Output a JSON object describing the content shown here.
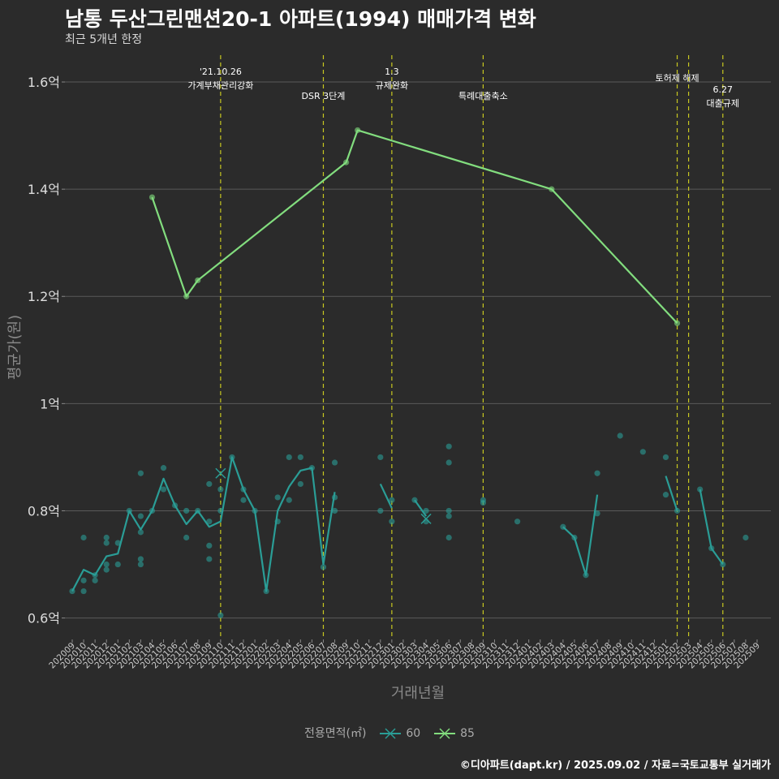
{
  "title": "남통 두산그린맨션20-1 아파트(1994) 매매가격 변화",
  "subtitle": "최근 5개년 한정",
  "caption": "©디아파트(dapt.kr) / 2025.09.02 / 자료=국토교통부 실거래가",
  "legend": {
    "title": "전용면적(㎡)",
    "items": [
      "60",
      "85"
    ]
  },
  "colors": {
    "s60": "#2a9d96",
    "s85": "#82dd7e",
    "event": "#c8c820",
    "bg": "#2b2b2b",
    "grid": "#5a5a5a"
  },
  "chart_data": {
    "type": "line",
    "title": "남통 두산그린맨션20-1 아파트(1994) 매매가격 변화",
    "xlabel": "거래년월",
    "ylabel": "평균가(원)",
    "ylim": [
      0.56,
      1.65
    ],
    "yticks": [
      0.6,
      0.8,
      1.0,
      1.2,
      1.4,
      1.6
    ],
    "ytick_labels": [
      "0.6억",
      "0.8억",
      "1억",
      "1.2억",
      "1.4억",
      "1.6억"
    ],
    "categories": [
      "202009",
      "202010",
      "202011",
      "202012",
      "202101",
      "202102",
      "202103",
      "202104",
      "202105",
      "202106",
      "202107",
      "202108",
      "202109",
      "202110",
      "202111",
      "202112",
      "202201",
      "202202",
      "202203",
      "202204",
      "202205",
      "202206",
      "202207",
      "202208",
      "202209",
      "202210",
      "202211",
      "202212",
      "202301",
      "202302",
      "202303",
      "202304",
      "202305",
      "202306",
      "202307",
      "202308",
      "202309",
      "202310",
      "202311",
      "202312",
      "202401",
      "202402",
      "202403",
      "202404",
      "202405",
      "202406",
      "202407",
      "202408",
      "202409",
      "202410",
      "202411",
      "202412",
      "202501",
      "202502",
      "202503",
      "202504",
      "202505",
      "202506",
      "202507",
      "202508",
      "202509"
    ],
    "events": [
      {
        "month": "202110",
        "label": "'21.10.26\n가계부채관리강화",
        "level": 0
      },
      {
        "month": "202207",
        "label": "DSR 3단계",
        "level": 2
      },
      {
        "month": "202301",
        "label": "1.3\n규제완화",
        "level": 0
      },
      {
        "month": "202309",
        "label": "특례대출축소",
        "level": 2
      },
      {
        "month": "202502",
        "label": "토허제 해제",
        "level": 1
      },
      {
        "month": "202503",
        "label": "",
        "level": 1
      },
      {
        "month": "202506",
        "label": "6.27\n대출규제",
        "level": 3
      }
    ],
    "series": [
      {
        "name": "60",
        "line": [
          [
            0,
            0.65
          ],
          [
            1,
            0.69
          ],
          [
            2,
            0.68
          ],
          [
            3,
            0.715
          ],
          [
            4,
            0.72
          ],
          [
            5,
            0.8
          ],
          [
            6,
            0.765
          ],
          [
            7,
            0.8
          ],
          [
            8,
            0.86
          ],
          [
            9,
            0.81
          ],
          [
            10,
            0.775
          ],
          [
            11,
            0.8
          ],
          [
            12,
            0.77
          ],
          [
            13,
            0.78
          ],
          [
            14,
            0.9
          ],
          [
            15,
            0.84
          ],
          [
            16,
            0.8
          ],
          [
            17,
            0.65
          ],
          [
            18,
            0.8
          ],
          [
            19,
            0.845
          ],
          [
            20,
            0.875
          ],
          [
            21,
            0.88
          ],
          [
            22,
            0.7
          ],
          [
            23,
            0.835
          ],
          null,
          [
            27,
            0.85
          ],
          [
            28,
            0.805
          ],
          null,
          [
            30,
            0.82
          ],
          [
            31,
            0.79
          ],
          null,
          [
            43,
            0.77
          ],
          [
            44,
            0.75
          ],
          [
            45,
            0.68
          ],
          [
            46,
            0.83
          ],
          null,
          [
            52,
            0.865
          ],
          [
            53,
            0.8
          ],
          null,
          [
            55,
            0.84
          ],
          [
            56,
            0.73
          ],
          [
            57,
            0.7
          ]
        ],
        "points": [
          [
            0,
            0.65
          ],
          [
            1,
            0.67
          ],
          [
            1,
            0.65
          ],
          [
            1,
            0.75
          ],
          [
            2,
            0.67
          ],
          [
            2,
            0.68
          ],
          [
            3,
            0.69
          ],
          [
            3,
            0.7
          ],
          [
            3,
            0.74
          ],
          [
            3,
            0.75
          ],
          [
            4,
            0.7
          ],
          [
            4,
            0.74
          ],
          [
            5,
            0.8
          ],
          [
            6,
            0.87
          ],
          [
            6,
            0.79
          ],
          [
            6,
            0.76
          ],
          [
            6,
            0.71
          ],
          [
            6,
            0.7
          ],
          [
            7,
            0.8
          ],
          [
            8,
            0.88
          ],
          [
            8,
            0.84
          ],
          [
            9,
            0.81
          ],
          [
            10,
            0.8
          ],
          [
            10,
            0.75
          ],
          [
            11,
            0.8
          ],
          [
            12,
            0.85
          ],
          [
            12,
            0.78
          ],
          [
            12,
            0.735
          ],
          [
            12,
            0.71
          ],
          [
            13,
            0.84
          ],
          [
            13,
            0.8
          ],
          [
            13,
            0.605
          ],
          [
            14,
            0.9
          ],
          [
            15,
            0.84
          ],
          [
            15,
            0.82
          ],
          [
            16,
            0.8
          ],
          [
            17,
            0.65
          ],
          [
            18,
            0.825
          ],
          [
            18,
            0.78
          ],
          [
            19,
            0.9
          ],
          [
            19,
            0.82
          ],
          [
            20,
            0.9
          ],
          [
            20,
            0.85
          ],
          [
            21,
            0.88
          ],
          [
            22,
            0.695
          ],
          [
            23,
            0.89
          ],
          [
            23,
            0.825
          ],
          [
            23,
            0.8
          ],
          [
            27,
            0.9
          ],
          [
            27,
            0.8
          ],
          [
            28,
            0.82
          ],
          [
            28,
            0.78
          ],
          [
            30,
            0.82
          ],
          [
            31,
            0.8
          ],
          [
            31,
            0.78
          ],
          [
            33,
            0.92
          ],
          [
            33,
            0.89
          ],
          [
            33,
            0.8
          ],
          [
            33,
            0.79
          ],
          [
            33,
            0.75
          ],
          [
            36,
            0.82
          ],
          [
            36,
            0.815
          ],
          [
            39,
            0.78
          ],
          [
            43,
            0.77
          ],
          [
            44,
            0.75
          ],
          [
            45,
            0.68
          ],
          [
            46,
            0.87
          ],
          [
            46,
            0.795
          ],
          [
            48,
            0.94
          ],
          [
            50,
            0.91
          ],
          [
            52,
            0.9
          ],
          [
            52,
            0.83
          ],
          [
            53,
            0.8
          ],
          [
            55,
            0.84
          ],
          [
            56,
            0.73
          ],
          [
            57,
            0.7
          ],
          [
            59,
            0.75
          ]
        ],
        "avg_markers": [
          [
            13,
            0.87
          ],
          [
            31,
            0.785
          ]
        ]
      },
      {
        "name": "85",
        "line": [
          [
            7,
            1.385
          ],
          [
            10,
            1.2
          ],
          [
            11,
            1.23
          ],
          [
            24,
            1.45
          ],
          [
            25,
            1.51
          ],
          [
            42,
            1.4
          ],
          [
            53,
            1.15
          ]
        ],
        "points": [
          [
            7,
            1.385
          ],
          [
            10,
            1.2
          ],
          [
            11,
            1.23
          ],
          [
            24,
            1.45
          ],
          [
            25,
            1.51
          ],
          [
            42,
            1.4
          ],
          [
            53,
            1.15
          ]
        ]
      }
    ]
  }
}
